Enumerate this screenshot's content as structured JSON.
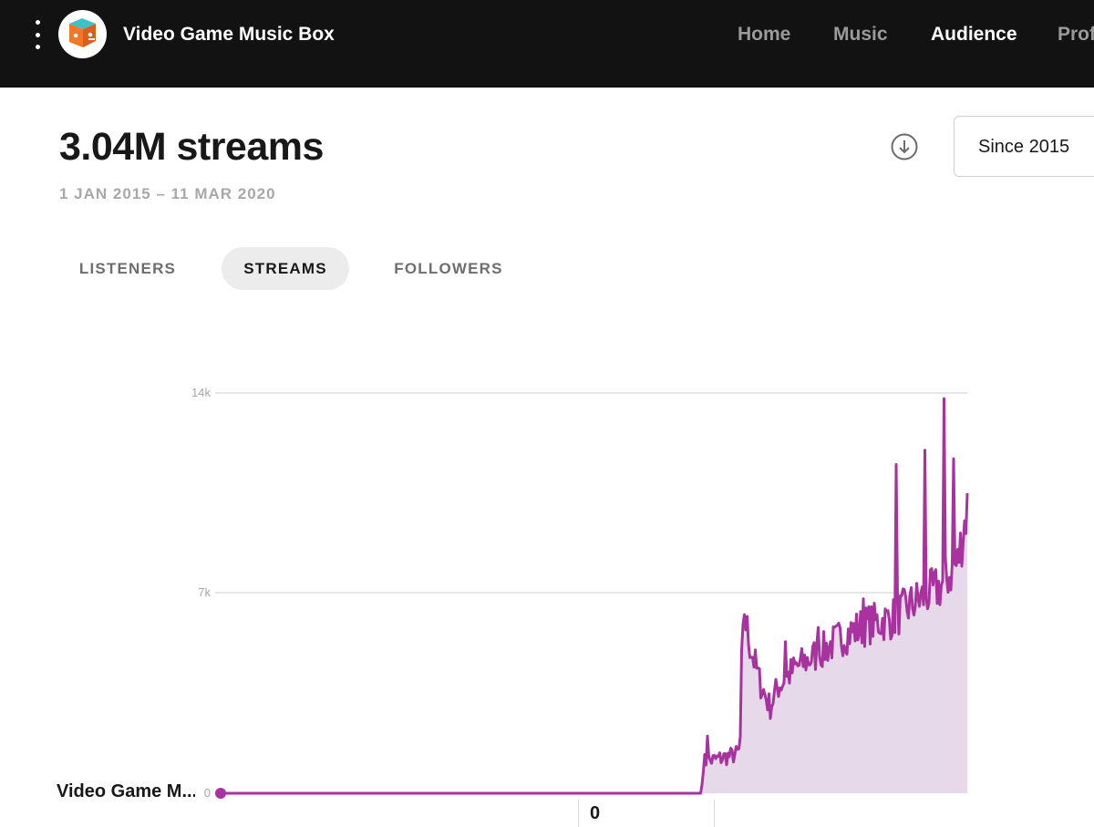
{
  "header": {
    "app_title": "Video Game Music Box",
    "nav": [
      {
        "label": "Home",
        "active": false
      },
      {
        "label": "Music",
        "active": false
      },
      {
        "label": "Audience",
        "active": true
      },
      {
        "label": "Prof",
        "active": false
      }
    ]
  },
  "summary": {
    "headline": "3.04M streams",
    "date_range": "1 JAN 2015 – 11 MAR 2020",
    "range_selector": "Since 2015",
    "download_icon": "download-icon"
  },
  "tabs": [
    {
      "label": "LISTENERS",
      "active": false
    },
    {
      "label": "STREAMS",
      "active": true
    },
    {
      "label": "FOLLOWERS",
      "active": false
    }
  ],
  "colors": {
    "topbar": "#121212",
    "series_line": "#a8329e",
    "series_fill": "#e5d9ea",
    "grid": "#cccccc",
    "logo_teal": "#3cc1c5",
    "logo_orange": "#f07828"
  },
  "tooltip": {
    "value": "0"
  },
  "chart_data": {
    "type": "area",
    "series": [
      {
        "name": "Video Game M...",
        "color": "#a8329e"
      }
    ],
    "y_ticks": [
      "14k",
      "7k",
      "0"
    ],
    "ylim": [
      0,
      14000
    ],
    "grid": true,
    "x_range": [
      "2015-01-01",
      "2020-03-11"
    ],
    "anchors": [
      {
        "date": "2015-01-01",
        "value": 0
      },
      {
        "date": "2018-05-06",
        "value": 0
      },
      {
        "date": "2018-05-11",
        "value": 1100
      },
      {
        "date": "2018-06-01",
        "value": 1150
      },
      {
        "date": "2018-07-01",
        "value": 1250
      },
      {
        "date": "2018-08-01",
        "value": 1350
      },
      {
        "date": "2018-08-12",
        "value": 1500
      },
      {
        "date": "2018-08-16",
        "value": 4500
      },
      {
        "date": "2018-08-23",
        "value": 6200
      },
      {
        "date": "2018-09-06",
        "value": 5200
      },
      {
        "date": "2018-10-01",
        "value": 3900
      },
      {
        "date": "2018-10-27",
        "value": 3000
      },
      {
        "date": "2018-11-15",
        "value": 3700
      },
      {
        "date": "2019-01-01",
        "value": 4400
      },
      {
        "date": "2019-03-01",
        "value": 4900
      },
      {
        "date": "2019-05-01",
        "value": 5500
      },
      {
        "date": "2019-07-01",
        "value": 5900
      },
      {
        "date": "2019-09-01",
        "value": 6100
      },
      {
        "date": "2019-11-01",
        "value": 6700
      },
      {
        "date": "2020-01-01",
        "value": 7200
      },
      {
        "date": "2020-02-15",
        "value": 8000
      },
      {
        "date": "2020-03-11",
        "value": 10000
      }
    ],
    "spikes": [
      {
        "date": "2018-05-22",
        "value": 2000
      },
      {
        "date": "2018-08-23",
        "value": 6250
      },
      {
        "date": "2018-12-05",
        "value": 5300
      },
      {
        "date": "2019-02-28",
        "value": 5800
      },
      {
        "date": "2019-06-20",
        "value": 6800
      },
      {
        "date": "2019-09-12",
        "value": 11500
      },
      {
        "date": "2019-11-25",
        "value": 12000
      },
      {
        "date": "2020-01-13",
        "value": 13800
      },
      {
        "date": "2020-02-06",
        "value": 11700
      }
    ]
  }
}
